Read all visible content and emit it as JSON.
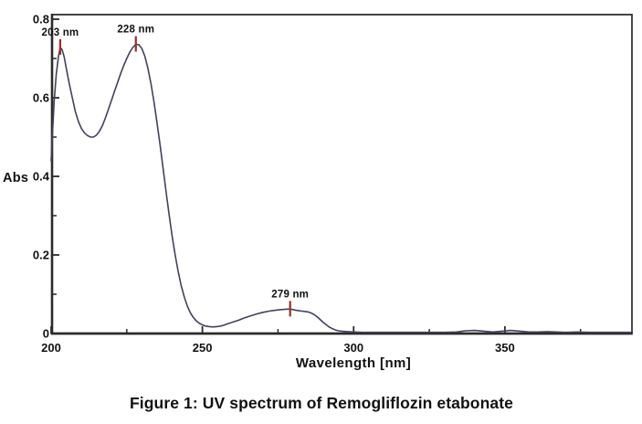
{
  "figure_caption": "Figure 1: UV spectrum of Remogliflozin etabonate",
  "chart_data": {
    "type": "line",
    "title": "UV spectrum of Remogliflozin etabonate",
    "xlabel": "Wavelength [nm]",
    "ylabel": "Abs",
    "xlim": [
      200,
      392
    ],
    "ylim": [
      0,
      0.8
    ],
    "grid": false,
    "legend_position": "none",
    "colors": {
      "line": "#41425c",
      "peak_marker": "#9e2c28",
      "axis": "#2b2b2b",
      "text": "#111111",
      "background": "#ffffff"
    },
    "x_ticks": {
      "major": [
        {
          "value": 200,
          "label": "200"
        },
        {
          "value": 250,
          "label": "250"
        },
        {
          "value": 300,
          "label": "300"
        },
        {
          "value": 350,
          "label": "350"
        }
      ],
      "minor": [
        225,
        275,
        325,
        375
      ]
    },
    "y_ticks": {
      "major": [
        {
          "value": 0,
          "label": "0"
        },
        {
          "value": 0.2,
          "label": "0.2"
        },
        {
          "value": 0.4,
          "label": "0.4"
        },
        {
          "value": 0.6,
          "label": "0.6"
        },
        {
          "value": 0.8,
          "label": "0.8"
        }
      ],
      "minor": [
        0.1,
        0.3,
        0.5,
        0.7
      ]
    },
    "peaks": [
      {
        "label": "203 nm",
        "wavelength": 203,
        "absorbance": 0.728
      },
      {
        "label": "228 nm",
        "wavelength": 228,
        "absorbance": 0.736
      },
      {
        "label": "279 nm",
        "wavelength": 279,
        "absorbance": 0.062
      }
    ],
    "series": [
      {
        "name": "Absorbance",
        "points": [
          [
            200,
            0.44
          ],
          [
            200.5,
            0.52
          ],
          [
            201,
            0.59
          ],
          [
            201.7,
            0.66
          ],
          [
            202.4,
            0.705
          ],
          [
            203,
            0.728
          ],
          [
            203.6,
            0.723
          ],
          [
            204.3,
            0.705
          ],
          [
            205,
            0.675
          ],
          [
            206,
            0.635
          ],
          [
            207,
            0.6
          ],
          [
            208,
            0.565
          ],
          [
            209,
            0.54
          ],
          [
            210,
            0.522
          ],
          [
            211,
            0.511
          ],
          [
            212,
            0.504
          ],
          [
            213,
            0.5
          ],
          [
            214,
            0.5
          ],
          [
            215,
            0.505
          ],
          [
            216,
            0.515
          ],
          [
            217,
            0.53
          ],
          [
            218,
            0.55
          ],
          [
            219,
            0.572
          ],
          [
            220,
            0.595
          ],
          [
            221,
            0.618
          ],
          [
            222,
            0.64
          ],
          [
            223,
            0.662
          ],
          [
            224,
            0.682
          ],
          [
            225,
            0.7
          ],
          [
            226,
            0.716
          ],
          [
            227,
            0.728
          ],
          [
            228,
            0.736
          ],
          [
            229,
            0.735
          ],
          [
            230,
            0.725
          ],
          [
            231,
            0.705
          ],
          [
            232,
            0.675
          ],
          [
            233,
            0.636
          ],
          [
            234,
            0.59
          ],
          [
            235,
            0.537
          ],
          [
            236,
            0.48
          ],
          [
            237,
            0.42
          ],
          [
            238,
            0.36
          ],
          [
            239,
            0.302
          ],
          [
            240,
            0.248
          ],
          [
            241,
            0.2
          ],
          [
            242,
            0.158
          ],
          [
            243,
            0.122
          ],
          [
            244,
            0.093
          ],
          [
            245,
            0.07
          ],
          [
            246,
            0.053
          ],
          [
            247,
            0.041
          ],
          [
            248,
            0.032
          ],
          [
            249,
            0.026
          ],
          [
            250,
            0.022
          ],
          [
            251,
            0.019
          ],
          [
            252,
            0.018
          ],
          [
            253,
            0.017
          ],
          [
            254,
            0.017
          ],
          [
            255,
            0.018
          ],
          [
            256,
            0.019
          ],
          [
            257,
            0.021
          ],
          [
            258,
            0.024
          ],
          [
            260,
            0.029
          ],
          [
            262,
            0.034
          ],
          [
            264,
            0.04
          ],
          [
            266,
            0.045
          ],
          [
            268,
            0.05
          ],
          [
            270,
            0.054
          ],
          [
            272,
            0.057
          ],
          [
            274,
            0.059
          ],
          [
            276,
            0.061
          ],
          [
            278,
            0.062
          ],
          [
            279,
            0.062
          ],
          [
            280,
            0.061
          ],
          [
            281,
            0.059
          ],
          [
            282,
            0.058
          ],
          [
            283,
            0.057
          ],
          [
            284,
            0.056
          ],
          [
            285,
            0.055
          ],
          [
            286,
            0.052
          ],
          [
            287,
            0.048
          ],
          [
            288,
            0.042
          ],
          [
            289,
            0.035
          ],
          [
            290,
            0.028
          ],
          [
            291,
            0.022
          ],
          [
            292,
            0.016
          ],
          [
            293,
            0.012
          ],
          [
            294,
            0.009
          ],
          [
            295,
            0.007
          ],
          [
            296,
            0.006
          ],
          [
            298,
            0.005
          ],
          [
            300,
            0.004
          ],
          [
            303,
            0.003
          ],
          [
            306,
            0.003
          ],
          [
            310,
            0.003
          ],
          [
            315,
            0.003
          ],
          [
            320,
            0.003
          ],
          [
            325,
            0.003
          ],
          [
            330,
            0.003
          ],
          [
            334,
            0.004
          ],
          [
            337,
            0.007
          ],
          [
            340,
            0.008
          ],
          [
            343,
            0.006
          ],
          [
            346,
            0.004
          ],
          [
            349,
            0.006
          ],
          [
            352,
            0.008
          ],
          [
            355,
            0.006
          ],
          [
            358,
            0.004
          ],
          [
            361,
            0.004
          ],
          [
            364,
            0.005
          ],
          [
            367,
            0.004
          ],
          [
            370,
            0.003
          ],
          [
            374,
            0.004
          ],
          [
            378,
            0.003
          ],
          [
            382,
            0.003
          ],
          [
            386,
            0.003
          ],
          [
            390,
            0.003
          ],
          [
            391.5,
            0.003
          ]
        ]
      }
    ]
  }
}
